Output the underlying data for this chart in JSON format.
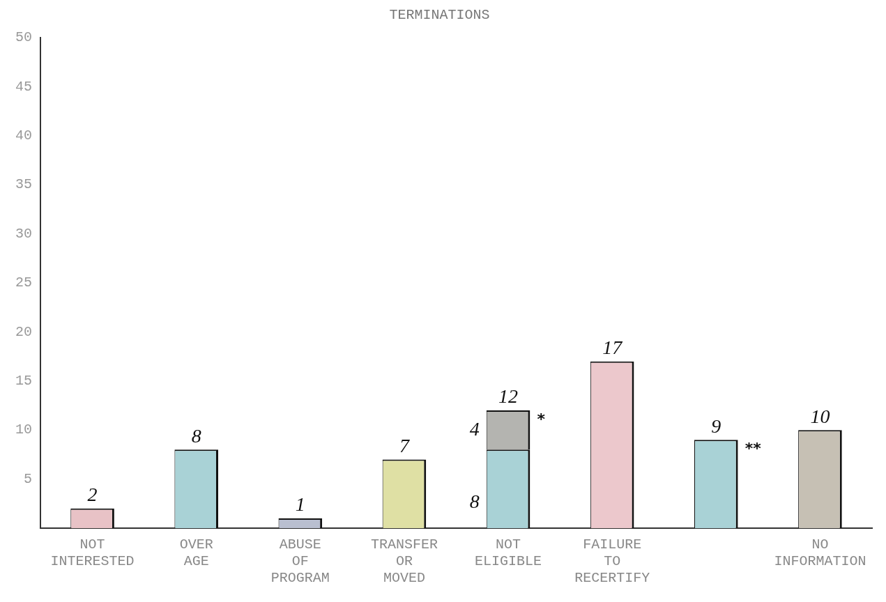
{
  "chart_data": {
    "type": "bar",
    "title": "TERMINATIONS",
    "categories": [
      "NOT INTERESTED",
      "OVER AGE",
      "ABUSE OF PROGRAM",
      "TRANSFER OR MOVED",
      "NOT ELIGIBLE",
      "FAILURE TO RECERTIFY",
      null,
      "NO INFORMATION"
    ],
    "stacked": true,
    "series": [
      {
        "colors": [
          "#e8c2c6",
          "#a9d2d6",
          "#b9bfd0",
          "#dfe0a4",
          "#a9d2d6",
          "#ecc8cc",
          "#a9d2d6",
          "#c6c0b4"
        ],
        "values": [
          2,
          8,
          1,
          7,
          8,
          17,
          9,
          10
        ],
        "value_labels": [
          "2",
          "8",
          "1",
          "7",
          "8",
          "17",
          "9",
          "10"
        ]
      },
      {
        "color": "#b4b4b0",
        "values": [
          null,
          null,
          null,
          null,
          4,
          null,
          null,
          null
        ],
        "value_labels": [
          null,
          null,
          null,
          null,
          "4",
          null,
          null,
          null
        ]
      }
    ],
    "totals": [
      null,
      null,
      null,
      null,
      "12",
      null,
      null,
      null
    ],
    "annotations": [
      "*",
      "**"
    ],
    "ylim": [
      0,
      50
    ],
    "yticks": [
      5,
      10,
      15,
      20,
      25,
      30,
      35,
      40,
      45,
      50
    ],
    "grid": false,
    "legend": false
  }
}
